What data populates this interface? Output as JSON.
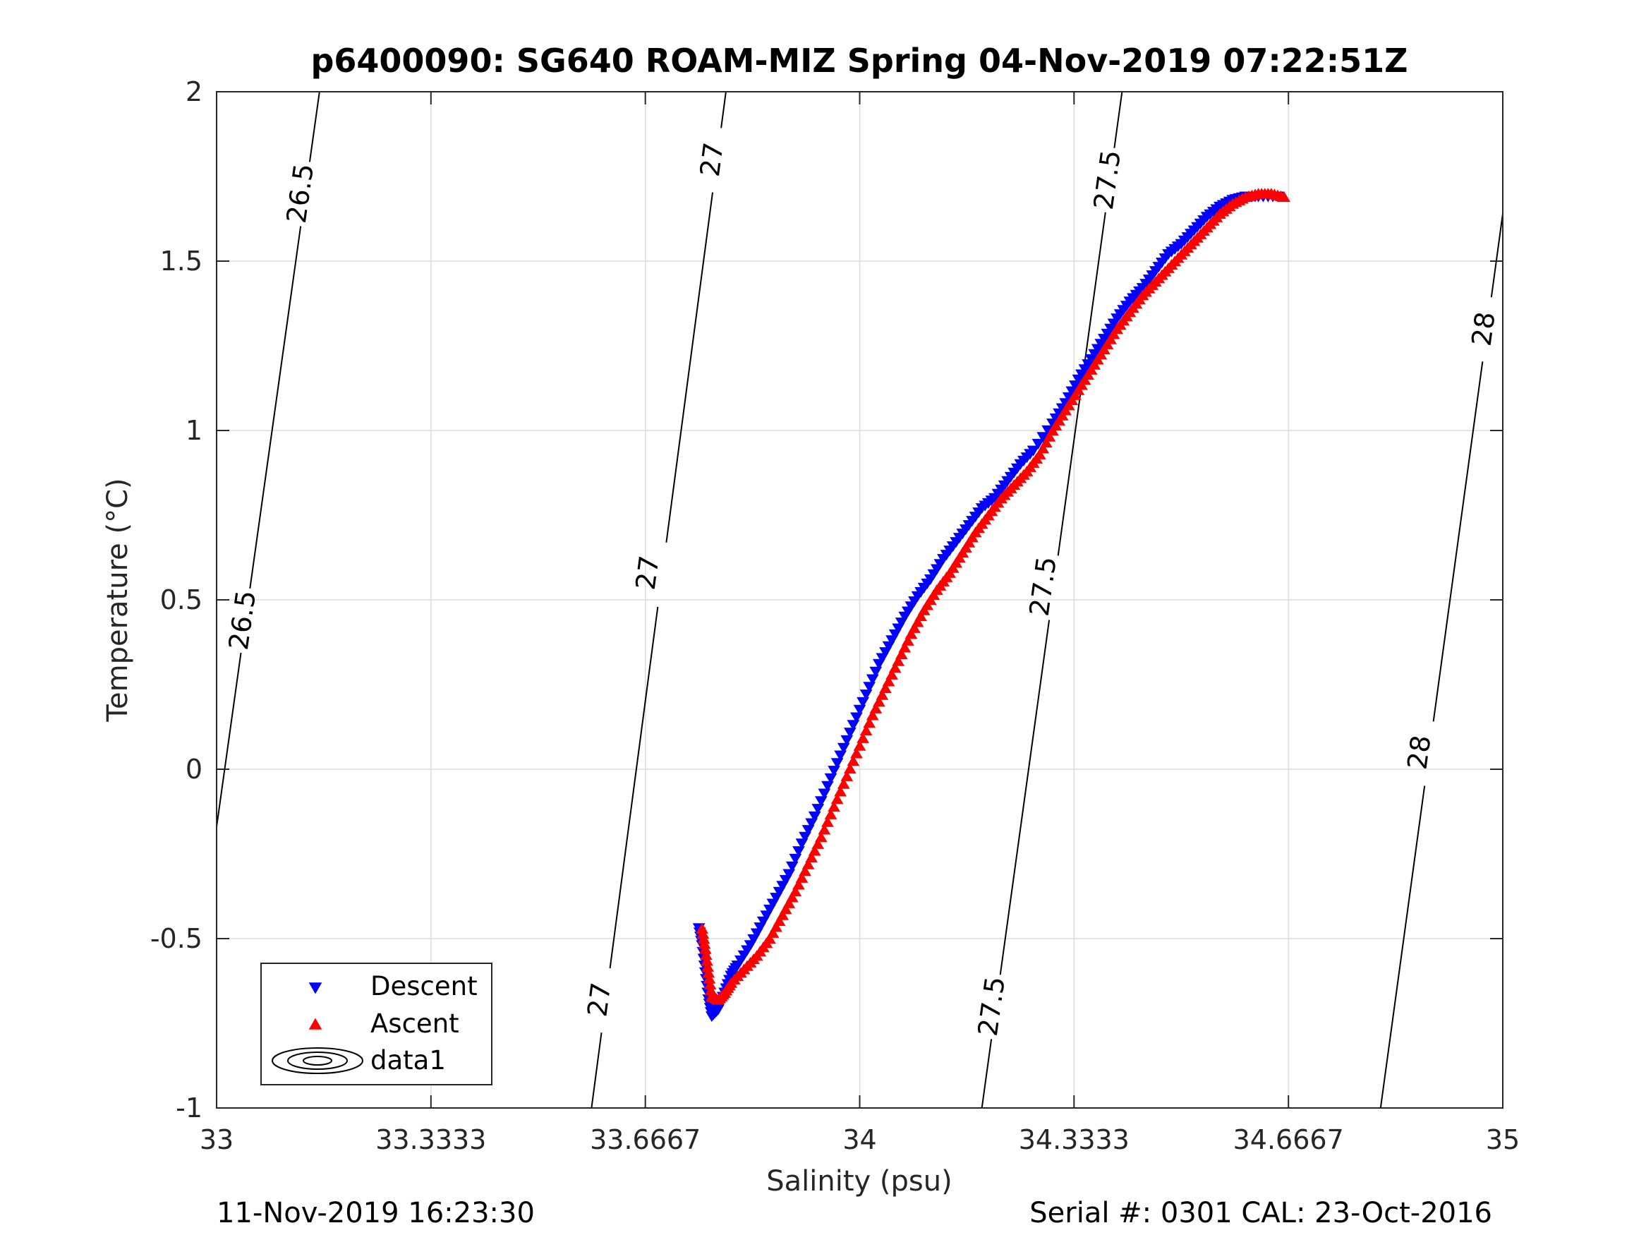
{
  "chart_data": {
    "type": "scatter",
    "title": "p6400090: SG640 ROAM-MIZ Spring 04-Nov-2019 07:22:51Z",
    "xlabel": "Salinity (psu)",
    "ylabel": "Temperature (°C)",
    "xlim": [
      33,
      35
    ],
    "ylim": [
      -1,
      2
    ],
    "xticks": [
      33,
      33.3333,
      33.6667,
      34,
      34.3333,
      34.6667,
      35
    ],
    "xtick_labels": [
      "33",
      "33.3333",
      "33.6667",
      "34",
      "34.3333",
      "34.6667",
      "35"
    ],
    "yticks": [
      -1,
      -0.5,
      0,
      0.5,
      1,
      1.5,
      2
    ],
    "ytick_labels": [
      "-1",
      "-0.5",
      "0",
      "0.5",
      "1",
      "1.5",
      "2"
    ],
    "grid": true,
    "legend_position": "bottom-left",
    "series": [
      {
        "name": "Descent",
        "marker": "triangle-down",
        "color": "#0000ff",
        "points": [
          [
            34.65,
            1.69
          ],
          [
            34.62,
            1.69
          ],
          [
            34.6,
            1.69
          ],
          [
            34.58,
            1.68
          ],
          [
            34.56,
            1.66
          ],
          [
            34.54,
            1.63
          ],
          [
            34.52,
            1.59
          ],
          [
            34.5,
            1.55
          ],
          [
            34.48,
            1.52
          ],
          [
            34.46,
            1.47
          ],
          [
            34.44,
            1.42
          ],
          [
            34.42,
            1.38
          ],
          [
            34.4,
            1.33
          ],
          [
            34.38,
            1.27
          ],
          [
            34.36,
            1.21
          ],
          [
            34.34,
            1.15
          ],
          [
            34.32,
            1.08
          ],
          [
            34.3,
            1.02
          ],
          [
            34.27,
            0.94
          ],
          [
            34.25,
            0.9
          ],
          [
            34.23,
            0.85
          ],
          [
            34.21,
            0.8
          ],
          [
            34.19,
            0.77
          ],
          [
            34.17,
            0.72
          ],
          [
            34.15,
            0.67
          ],
          [
            34.13,
            0.62
          ],
          [
            34.11,
            0.56
          ],
          [
            34.09,
            0.51
          ],
          [
            34.07,
            0.45
          ],
          [
            34.05,
            0.38
          ],
          [
            34.03,
            0.31
          ],
          [
            34.01,
            0.22
          ],
          [
            33.99,
            0.13
          ],
          [
            33.97,
            0.04
          ],
          [
            33.95,
            -0.05
          ],
          [
            33.93,
            -0.14
          ],
          [
            33.91,
            -0.22
          ],
          [
            33.89,
            -0.31
          ],
          [
            33.87,
            -0.38
          ],
          [
            33.85,
            -0.45
          ],
          [
            33.83,
            -0.52
          ],
          [
            33.81,
            -0.58
          ],
          [
            33.8,
            -0.61
          ],
          [
            33.79,
            -0.66
          ],
          [
            33.78,
            -0.71
          ],
          [
            33.77,
            -0.73
          ],
          [
            33.765,
            -0.68
          ],
          [
            33.76,
            -0.6
          ],
          [
            33.755,
            -0.52
          ],
          [
            33.75,
            -0.47
          ]
        ]
      },
      {
        "name": "Ascent",
        "marker": "triangle-up",
        "color": "#ff0000",
        "points": [
          [
            34.66,
            1.69
          ],
          [
            34.64,
            1.7
          ],
          [
            34.62,
            1.7
          ],
          [
            34.6,
            1.69
          ],
          [
            34.58,
            1.67
          ],
          [
            34.56,
            1.64
          ],
          [
            34.54,
            1.6
          ],
          [
            34.52,
            1.56
          ],
          [
            34.5,
            1.52
          ],
          [
            34.48,
            1.48
          ],
          [
            34.46,
            1.44
          ],
          [
            34.44,
            1.4
          ],
          [
            34.42,
            1.35
          ],
          [
            34.4,
            1.3
          ],
          [
            34.38,
            1.24
          ],
          [
            34.36,
            1.18
          ],
          [
            34.34,
            1.12
          ],
          [
            34.32,
            1.06
          ],
          [
            34.3,
            1.0
          ],
          [
            34.28,
            0.93
          ],
          [
            34.26,
            0.88
          ],
          [
            34.24,
            0.84
          ],
          [
            34.22,
            0.8
          ],
          [
            34.2,
            0.75
          ],
          [
            34.18,
            0.7
          ],
          [
            34.16,
            0.64
          ],
          [
            34.14,
            0.58
          ],
          [
            34.12,
            0.53
          ],
          [
            34.1,
            0.47
          ],
          [
            34.08,
            0.4
          ],
          [
            34.06,
            0.32
          ],
          [
            34.04,
            0.24
          ],
          [
            34.02,
            0.16
          ],
          [
            34.0,
            0.07
          ],
          [
            33.98,
            -0.02
          ],
          [
            33.96,
            -0.11
          ],
          [
            33.94,
            -0.2
          ],
          [
            33.92,
            -0.28
          ],
          [
            33.9,
            -0.36
          ],
          [
            33.88,
            -0.43
          ],
          [
            33.86,
            -0.5
          ],
          [
            33.84,
            -0.55
          ],
          [
            33.82,
            -0.59
          ],
          [
            33.8,
            -0.63
          ],
          [
            33.79,
            -0.66
          ],
          [
            33.78,
            -0.68
          ],
          [
            33.77,
            -0.67
          ],
          [
            33.765,
            -0.6
          ],
          [
            33.76,
            -0.53
          ],
          [
            33.755,
            -0.47
          ]
        ]
      }
    ],
    "contours": {
      "name": "data1",
      "color": "#000000",
      "lines": [
        {
          "value": "26.5",
          "points": [
            [
              33.0,
              -0.17
            ],
            [
              33.16,
              2.0
            ]
          ],
          "labels": [
            {
              "x": 33.04,
              "y": 0.44
            },
            {
              "x": 33.13,
              "y": 1.7
            }
          ]
        },
        {
          "value": "27",
          "points": [
            [
              33.583,
              -1.0
            ],
            [
              33.792,
              2.0
            ]
          ],
          "labels": [
            {
              "x": 33.595,
              "y": -0.68
            },
            {
              "x": 33.67,
              "y": 0.58
            },
            {
              "x": 33.77,
              "y": 1.8
            }
          ]
        },
        {
          "value": "27.5",
          "points": [
            [
              34.19,
              -1.0
            ],
            [
              34.408,
              2.0
            ]
          ],
          "labels": [
            {
              "x": 34.205,
              "y": -0.7
            },
            {
              "x": 34.285,
              "y": 0.54
            },
            {
              "x": 34.385,
              "y": 1.74
            }
          ]
        },
        {
          "value": "28",
          "points": [
            [
              34.81,
              -1.0
            ],
            [
              35.0,
              1.64
            ]
          ],
          "labels": [
            {
              "x": 34.87,
              "y": 0.05
            },
            {
              "x": 34.97,
              "y": 1.3
            }
          ]
        }
      ]
    }
  },
  "footer": {
    "left": "11-Nov-2019 16:23:30",
    "right": "Serial #: 0301  CAL: 23-Oct-2016"
  }
}
